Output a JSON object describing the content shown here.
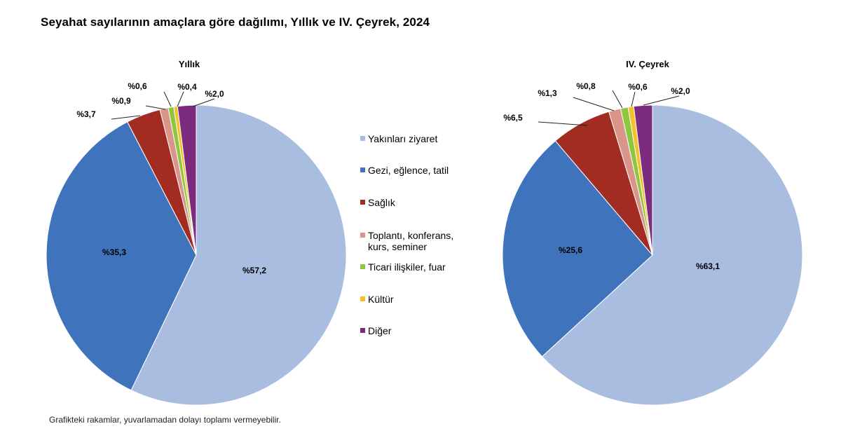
{
  "title": "Seyahat sayılarının amaçlara göre dağılımı, Yıllık ve IV. Çeyrek, 2024",
  "footnote": "Grafikteki rakamlar, yuvarlamadan dolayı toplamı vermeyebilir.",
  "chart_data": [
    {
      "type": "pie",
      "title": "Yıllık",
      "categories": [
        "Yakınları ziyaret",
        "Gezi, eğlence, tatil",
        "Sağlık",
        "Toplantı, konferans, kurs, seminer",
        "Ticari ilişkiler, fuar",
        "Kültür",
        "Diğer"
      ],
      "values": [
        57.2,
        35.3,
        3.7,
        0.9,
        0.6,
        0.4,
        2.0
      ],
      "labels": [
        "%57,2",
        "%35,3",
        "%3,7",
        "%0,9",
        "%0,6",
        "%0,4",
        "%2,0"
      ],
      "start": "12 o'clock",
      "direction": "clockwise"
    },
    {
      "type": "pie",
      "title": "IV. Çeyrek",
      "categories": [
        "Yakınları ziyaret",
        "Gezi, eğlence, tatil",
        "Sağlık",
        "Toplantı, konferans, kurs, seminer",
        "Ticari ilişkiler, fuar",
        "Kültür",
        "Diğer"
      ],
      "values": [
        63.1,
        25.6,
        6.5,
        1.3,
        0.8,
        0.6,
        2.0
      ],
      "labels": [
        "%63,1",
        "%25,6",
        "%6,5",
        "%1,3",
        "%0,8",
        "%0,6",
        "%2,0"
      ],
      "start": "12 o'clock",
      "direction": "clockwise"
    }
  ],
  "legend": {
    "placement": "center",
    "items": [
      {
        "lines": [
          "Yakınları ziyaret"
        ],
        "color": "#a9bde0"
      },
      {
        "lines": [
          "Gezi, eğlence, tatil"
        ],
        "color": "#3f74bd"
      },
      {
        "lines": [
          "Sağlık"
        ],
        "color": "#a22b22"
      },
      {
        "lines": [
          "Toplantı, konferans,",
          "kurs, seminer"
        ],
        "color": "#d9958a"
      },
      {
        "lines": [
          "Ticari ilişkiler, fuar"
        ],
        "color": "#8dc63f"
      },
      {
        "lines": [
          "Kültür"
        ],
        "color": "#f5c02a"
      },
      {
        "lines": [
          "Diğer"
        ],
        "color": "#7b2c7e"
      }
    ]
  }
}
